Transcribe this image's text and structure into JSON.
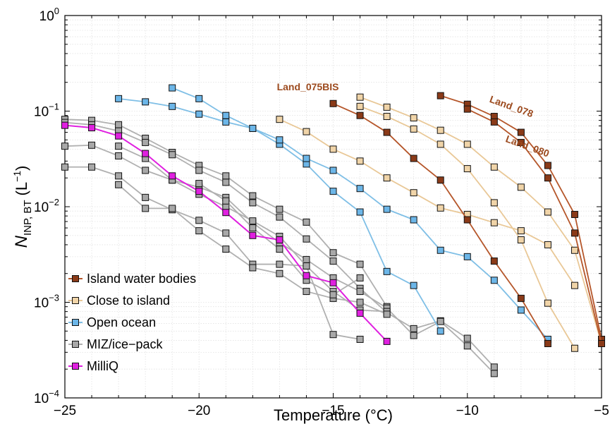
{
  "chart_data": {
    "type": "line",
    "xlabel": "Temperature (°C)",
    "ylabel_main": "N",
    "ylabel_sub": "INP, BT",
    "ylabel_unit_pre": "(L",
    "ylabel_unit_sup": "−1",
    "ylabel_unit_post": ")",
    "xlim": [
      -25,
      -5
    ],
    "ylim": [
      0.0001,
      1
    ],
    "yscale": "log",
    "grid": true,
    "legend": "bottom-left",
    "x_ticks": [
      {
        "value": -25,
        "label": "−25"
      },
      {
        "value": -20,
        "label": "−20"
      },
      {
        "value": -15,
        "label": "−15"
      },
      {
        "value": -10,
        "label": "−10"
      },
      {
        "value": -5,
        "label": "−5"
      }
    ],
    "y_ticks": [
      {
        "value": 0.0001,
        "base": "10",
        "exp": "−4"
      },
      {
        "value": 0.001,
        "base": "10",
        "exp": "−3"
      },
      {
        "value": 0.01,
        "base": "10",
        "exp": "−2"
      },
      {
        "value": 0.1,
        "base": "10",
        "exp": "−1"
      },
      {
        "value": 1,
        "base": "10",
        "exp": "0"
      }
    ],
    "groups": [
      {
        "legend": "Island water bodies",
        "color": "#b5562a",
        "fill": "#8a3a18"
      },
      {
        "legend": "Close to island",
        "color": "#e9c897",
        "fill": "#f0d4a8"
      },
      {
        "legend": "Open ocean",
        "color": "#7fbfe6",
        "fill": "#6cb6e8"
      },
      {
        "legend": "MIZ/ice−pack",
        "color": "#b0b0b0",
        "fill": "#a8a8a8"
      },
      {
        "legend": "MilliQ",
        "color": "#e020e0",
        "fill": "#e020e0"
      }
    ],
    "series": [
      {
        "group": 0,
        "name": "Land_075BIS",
        "points": [
          [
            -15,
            0.12
          ],
          [
            -14,
            0.09
          ],
          [
            -13,
            0.06
          ],
          [
            -12,
            0.032
          ],
          [
            -11,
            0.019
          ],
          [
            -10,
            0.0073
          ],
          [
            -9,
            0.0027
          ],
          [
            -8,
            0.0011
          ],
          [
            -7,
            0.00037
          ]
        ]
      },
      {
        "group": 0,
        "name": "Land_078",
        "points": [
          [
            -11,
            0.145
          ],
          [
            -10,
            0.118
          ],
          [
            -9,
            0.088
          ],
          [
            -8,
            0.06
          ],
          [
            -7,
            0.027
          ],
          [
            -6,
            0.0083
          ],
          [
            -5,
            0.00041
          ]
        ]
      },
      {
        "group": 0,
        "name": "Land_080",
        "points": [
          [
            -10,
            0.105
          ],
          [
            -9,
            0.077
          ],
          [
            -8,
            0.047
          ],
          [
            -7,
            0.02
          ],
          [
            -6,
            0.0053
          ],
          [
            -5,
            0.00037
          ]
        ]
      },
      {
        "group": 1,
        "points": [
          [
            -14,
            0.14
          ],
          [
            -13,
            0.11
          ],
          [
            -12,
            0.085
          ],
          [
            -11,
            0.063
          ],
          [
            -10,
            0.045
          ],
          [
            -9,
            0.026
          ],
          [
            -8,
            0.016
          ],
          [
            -7,
            0.0088
          ],
          [
            -6,
            0.0035
          ],
          [
            -5,
            0.00037
          ]
        ]
      },
      {
        "group": 1,
        "points": [
          [
            -14,
            0.112
          ],
          [
            -13,
            0.088
          ],
          [
            -12,
            0.065
          ],
          [
            -11,
            0.045
          ],
          [
            -10,
            0.025
          ],
          [
            -9,
            0.011
          ],
          [
            -8,
            0.0045
          ],
          [
            -7,
            0.00098
          ],
          [
            -6,
            0.00033
          ]
        ]
      },
      {
        "group": 1,
        "points": [
          [
            -17,
            0.082
          ],
          [
            -16,
            0.061
          ],
          [
            -15,
            0.04
          ],
          [
            -14,
            0.03
          ],
          [
            -13,
            0.02
          ],
          [
            -12,
            0.014
          ],
          [
            -11,
            0.0097
          ],
          [
            -10,
            0.0083
          ],
          [
            -9,
            0.0068
          ],
          [
            -8,
            0.0056
          ],
          [
            -7,
            0.004
          ],
          [
            -6,
            0.0015
          ]
        ]
      },
      {
        "group": 2,
        "points": [
          [
            -23,
            0.135
          ],
          [
            -22,
            0.125
          ],
          [
            -21,
            0.112
          ],
          [
            -20,
            0.093
          ],
          [
            -19,
            0.077
          ],
          [
            -18,
            0.066
          ],
          [
            -17,
            0.045
          ],
          [
            -16,
            0.028
          ],
          [
            -15,
            0.0145
          ],
          [
            -14,
            0.0088
          ],
          [
            -13,
            0.0021
          ],
          [
            -12,
            0.0015
          ],
          [
            -11,
            0.0005
          ]
        ]
      },
      {
        "group": 2,
        "points": [
          [
            -21,
            0.175
          ],
          [
            -20,
            0.135
          ],
          [
            -19,
            0.09
          ],
          [
            -18,
            0.066
          ],
          [
            -17,
            0.05
          ],
          [
            -16,
            0.032
          ],
          [
            -15,
            0.024
          ],
          [
            -14,
            0.0155
          ],
          [
            -13,
            0.0094
          ],
          [
            -12,
            0.0073
          ],
          [
            -11,
            0.0035
          ],
          [
            -10,
            0.003
          ],
          [
            -9,
            0.0017
          ],
          [
            -8,
            0.00083
          ],
          [
            -7,
            0.00041
          ]
        ]
      },
      {
        "group": 3,
        "points": [
          [
            -25,
            0.082
          ],
          [
            -24,
            0.08
          ],
          [
            -23,
            0.072
          ],
          [
            -22,
            0.052
          ],
          [
            -21,
            0.037
          ],
          [
            -20,
            0.027
          ],
          [
            -19,
            0.021
          ],
          [
            -18,
            0.013
          ],
          [
            -17,
            0.0094
          ],
          [
            -16,
            0.0069
          ],
          [
            -15,
            0.0033
          ],
          [
            -14,
            0.0025
          ],
          [
            -13,
            0.0009
          ]
        ]
      },
      {
        "group": 3,
        "points": [
          [
            -25,
            0.076
          ],
          [
            -24,
            0.072
          ],
          [
            -23,
            0.062
          ],
          [
            -22,
            0.047
          ],
          [
            -21,
            0.035
          ],
          [
            -20,
            0.024
          ],
          [
            -19,
            0.018
          ],
          [
            -18,
            0.011
          ],
          [
            -17,
            0.0078
          ],
          [
            -16,
            0.0046
          ],
          [
            -15,
            0.0027
          ],
          [
            -14,
            0.0014
          ],
          [
            -13,
            0.00078
          ],
          [
            -12,
            0.00053
          ],
          [
            -11,
            0.00064
          ],
          [
            -10,
            0.00042
          ],
          [
            -9,
            0.00021
          ]
        ]
      },
      {
        "group": 3,
        "points": [
          [
            -25,
            0.043
          ],
          [
            -24,
            0.044
          ],
          [
            -23,
            0.034
          ],
          [
            -22,
            0.024
          ],
          [
            -21,
            0.019
          ],
          [
            -20,
            0.016
          ],
          [
            -19,
            0.0125
          ],
          [
            -18,
            0.0068
          ],
          [
            -17,
            0.0042
          ],
          [
            -16,
            0.0028
          ],
          [
            -15,
            0.0018
          ],
          [
            -14,
            0.0013
          ],
          [
            -13,
            0.00087
          ],
          [
            -12,
            0.00045
          ],
          [
            -11,
            0.00063
          ],
          [
            -10,
            0.00035
          ],
          [
            -9,
            0.00018
          ]
        ]
      },
      {
        "group": 3,
        "points": [
          [
            -25,
            0.026
          ],
          [
            -24,
            0.026
          ],
          [
            -23,
            0.021
          ],
          [
            -22,
            0.0125
          ],
          [
            -21,
            0.0093
          ],
          [
            -20,
            0.0072
          ],
          [
            -19,
            0.0053
          ],
          [
            -18,
            0.0025
          ],
          [
            -17,
            0.0025
          ],
          [
            -16,
            0.0024
          ],
          [
            -15,
            0.00046
          ],
          [
            -14,
            0.00041
          ]
        ]
      },
      {
        "group": 3,
        "points": [
          [
            -23,
            0.043
          ],
          [
            -22,
            0.032
          ],
          [
            -21,
            0.019
          ],
          [
            -20,
            0.0135
          ],
          [
            -19,
            0.01
          ],
          [
            -18,
            0.0071
          ],
          [
            -17,
            0.0049
          ],
          [
            -16,
            0.0024
          ],
          [
            -15,
            0.0013
          ],
          [
            -14,
            0.00083
          ],
          [
            -13,
            0.0008
          ]
        ]
      },
      {
        "group": 3,
        "points": [
          [
            -23,
            0.017
          ],
          [
            -22,
            0.0096
          ],
          [
            -21,
            0.0096
          ],
          [
            -20,
            0.0056
          ],
          [
            -19,
            0.0036
          ],
          [
            -18,
            0.0023
          ],
          [
            -17,
            0.002
          ],
          [
            -16,
            0.0013
          ],
          [
            -15,
            0.0011
          ],
          [
            -14,
            0.001
          ],
          [
            -13,
            0.00075
          ]
        ]
      },
      {
        "group": 3,
        "points": [
          [
            -20,
            0.0175
          ],
          [
            -19,
            0.0115
          ],
          [
            -18,
            0.006
          ],
          [
            -17,
            0.0036
          ],
          [
            -16,
            0.0017
          ],
          [
            -15,
            0.0012
          ],
          [
            -14,
            0.0018
          ]
        ]
      },
      {
        "group": 4,
        "points": [
          [
            -25,
            0.071
          ],
          [
            -24,
            0.067
          ],
          [
            -23,
            0.055
          ],
          [
            -22,
            0.036
          ],
          [
            -21,
            0.021
          ],
          [
            -20,
            0.0145
          ],
          [
            -19,
            0.0087
          ],
          [
            -18,
            0.005
          ],
          [
            -17,
            0.0045
          ],
          [
            -16,
            0.0019
          ],
          [
            -15,
            0.0016
          ],
          [
            -14,
            0.00077
          ],
          [
            -13,
            0.00039
          ]
        ]
      }
    ],
    "annotations": [
      {
        "text": "Land_075BIS",
        "x": -17.1,
        "y": 0.165,
        "rotate": 0
      },
      {
        "text": "Land_078",
        "x": -9.2,
        "y": 0.125,
        "rotate": 20
      },
      {
        "text": "Land_080",
        "x": -8.6,
        "y": 0.048,
        "rotate": 20
      }
    ]
  }
}
